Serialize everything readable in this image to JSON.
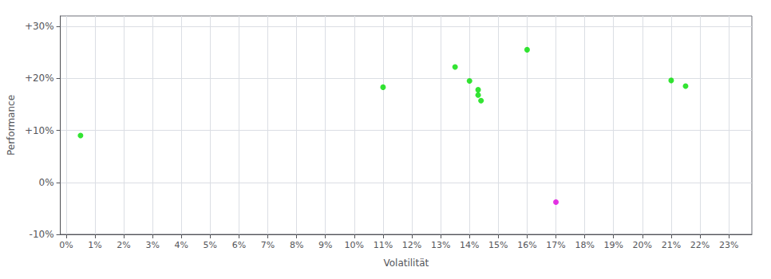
{
  "chart_data": {
    "type": "scatter",
    "xlabel": "Volatilität",
    "ylabel": "Performance",
    "xlim": [
      -0.002,
      0.238
    ],
    "ylim": [
      -0.1,
      0.32
    ],
    "xticks": [
      {
        "value": 0.0,
        "label": "0%"
      },
      {
        "value": 0.01,
        "label": "1%"
      },
      {
        "value": 0.02,
        "label": "2%"
      },
      {
        "value": 0.03,
        "label": "3%"
      },
      {
        "value": 0.04,
        "label": "4%"
      },
      {
        "value": 0.05,
        "label": "5%"
      },
      {
        "value": 0.06,
        "label": "6%"
      },
      {
        "value": 0.07,
        "label": "7%"
      },
      {
        "value": 0.08,
        "label": "8%"
      },
      {
        "value": 0.09,
        "label": "9%"
      },
      {
        "value": 0.1,
        "label": "10%"
      },
      {
        "value": 0.11,
        "label": "11%"
      },
      {
        "value": 0.12,
        "label": "12%"
      },
      {
        "value": 0.13,
        "label": "13%"
      },
      {
        "value": 0.14,
        "label": "14%"
      },
      {
        "value": 0.15,
        "label": "15%"
      },
      {
        "value": 0.16,
        "label": "16%"
      },
      {
        "value": 0.17,
        "label": "17%"
      },
      {
        "value": 0.18,
        "label": "18%"
      },
      {
        "value": 0.19,
        "label": "19%"
      },
      {
        "value": 0.2,
        "label": "20%"
      },
      {
        "value": 0.21,
        "label": "21%"
      },
      {
        "value": 0.22,
        "label": "22%"
      },
      {
        "value": 0.23,
        "label": "23%"
      }
    ],
    "yticks": [
      {
        "value": -0.1,
        "label": "-10%"
      },
      {
        "value": 0.0,
        "label": "0%"
      },
      {
        "value": 0.1,
        "label": "+10%"
      },
      {
        "value": 0.2,
        "label": "+20%"
      },
      {
        "value": 0.3,
        "label": "+30%"
      }
    ],
    "grid": true,
    "series": [
      {
        "color": "#00dd00",
        "x": [
          0.005,
          0.11,
          0.135,
          0.14,
          0.143,
          0.143,
          0.144,
          0.16,
          0.21,
          0.215
        ],
        "values": [
          0.09,
          0.183,
          0.222,
          0.195,
          0.178,
          0.168,
          0.157,
          0.255,
          0.196,
          0.185
        ]
      },
      {
        "color": "#dd00dd",
        "x": [
          0.17
        ],
        "values": [
          -0.038
        ]
      }
    ]
  }
}
